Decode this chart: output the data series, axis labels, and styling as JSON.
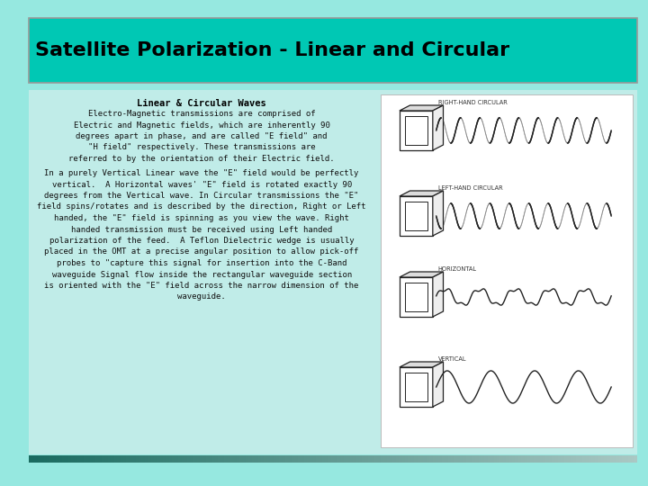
{
  "background_color": "#96e8e0",
  "title_box_color": "#00c8b4",
  "title_text": "Satellite Polarization - Linear and Circular",
  "title_color": "#000000",
  "title_fontsize": 16,
  "header_text": "Linear & Circular Waves",
  "para1_lines": [
    "Electro-Magnetic transmissions are comprised of",
    "Electric and Magnetic fields, which are inherently 90",
    "degrees apart in phase, and are called \"E field\" and",
    "\"H field\" respectively. These transmissions are",
    "referred to by the orientation of their Electric field."
  ],
  "para2_lines": [
    "In a purely Vertical Linear wave the \"E\" field would be perfectly",
    "vertical.  A Horizontal waves' \"E\" field is rotated exactly 90",
    "degrees from the Vertical wave. In Circular transmissions the \"E\"",
    "field spins/rotates and is described by the direction, Right or Left",
    "handed, the \"E\" field is spinning as you view the wave. Right",
    "handed transmission must be received using Left handed",
    "polarization of the feed.  A Teflon Dielectric wedge is usually",
    "placed in the OMT at a precise angular position to allow pick-off",
    "probes to \"capture this signal for insertion into the C-Band",
    "waveguide Signal flow inside the rectangular waveguide section",
    "is oriented with the \"E\" field across the narrow dimension of the",
    "waveguide."
  ],
  "diagram_labels": [
    "RIGHT-HAND CIRCULAR",
    "LEFT-HAND CIRCULAR",
    "HORIZONTAL",
    "VERTICAL"
  ],
  "footer_color_left": "#1a6b60",
  "footer_color_right": "#aacccc"
}
